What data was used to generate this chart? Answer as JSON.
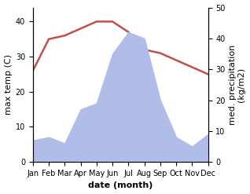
{
  "months": [
    "Jan",
    "Feb",
    "Mar",
    "Apr",
    "May",
    "Jun",
    "Jul",
    "Aug",
    "Sep",
    "Oct",
    "Nov",
    "Dec"
  ],
  "temperature": [
    26,
    35,
    36,
    38,
    40,
    40,
    37,
    32,
    31,
    29,
    27,
    25
  ],
  "precipitation": [
    7,
    8,
    6,
    17,
    19,
    35,
    42,
    40,
    20,
    8,
    5,
    9
  ],
  "temp_color": "#c0504d",
  "precip_fill_color": "#b0bde8",
  "ylabel_left": "max temp (C)",
  "ylabel_right": "med. precipitation\n(kg/m2)",
  "xlabel": "date (month)",
  "ylim_left": [
    0,
    44
  ],
  "ylim_right": [
    0,
    50
  ],
  "yticks_left": [
    0,
    10,
    20,
    30,
    40
  ],
  "yticks_right": [
    0,
    10,
    20,
    30,
    40,
    50
  ],
  "background_color": "#ffffff",
  "temp_linewidth": 1.8,
  "font_size_ticks": 7,
  "font_size_labels": 8
}
